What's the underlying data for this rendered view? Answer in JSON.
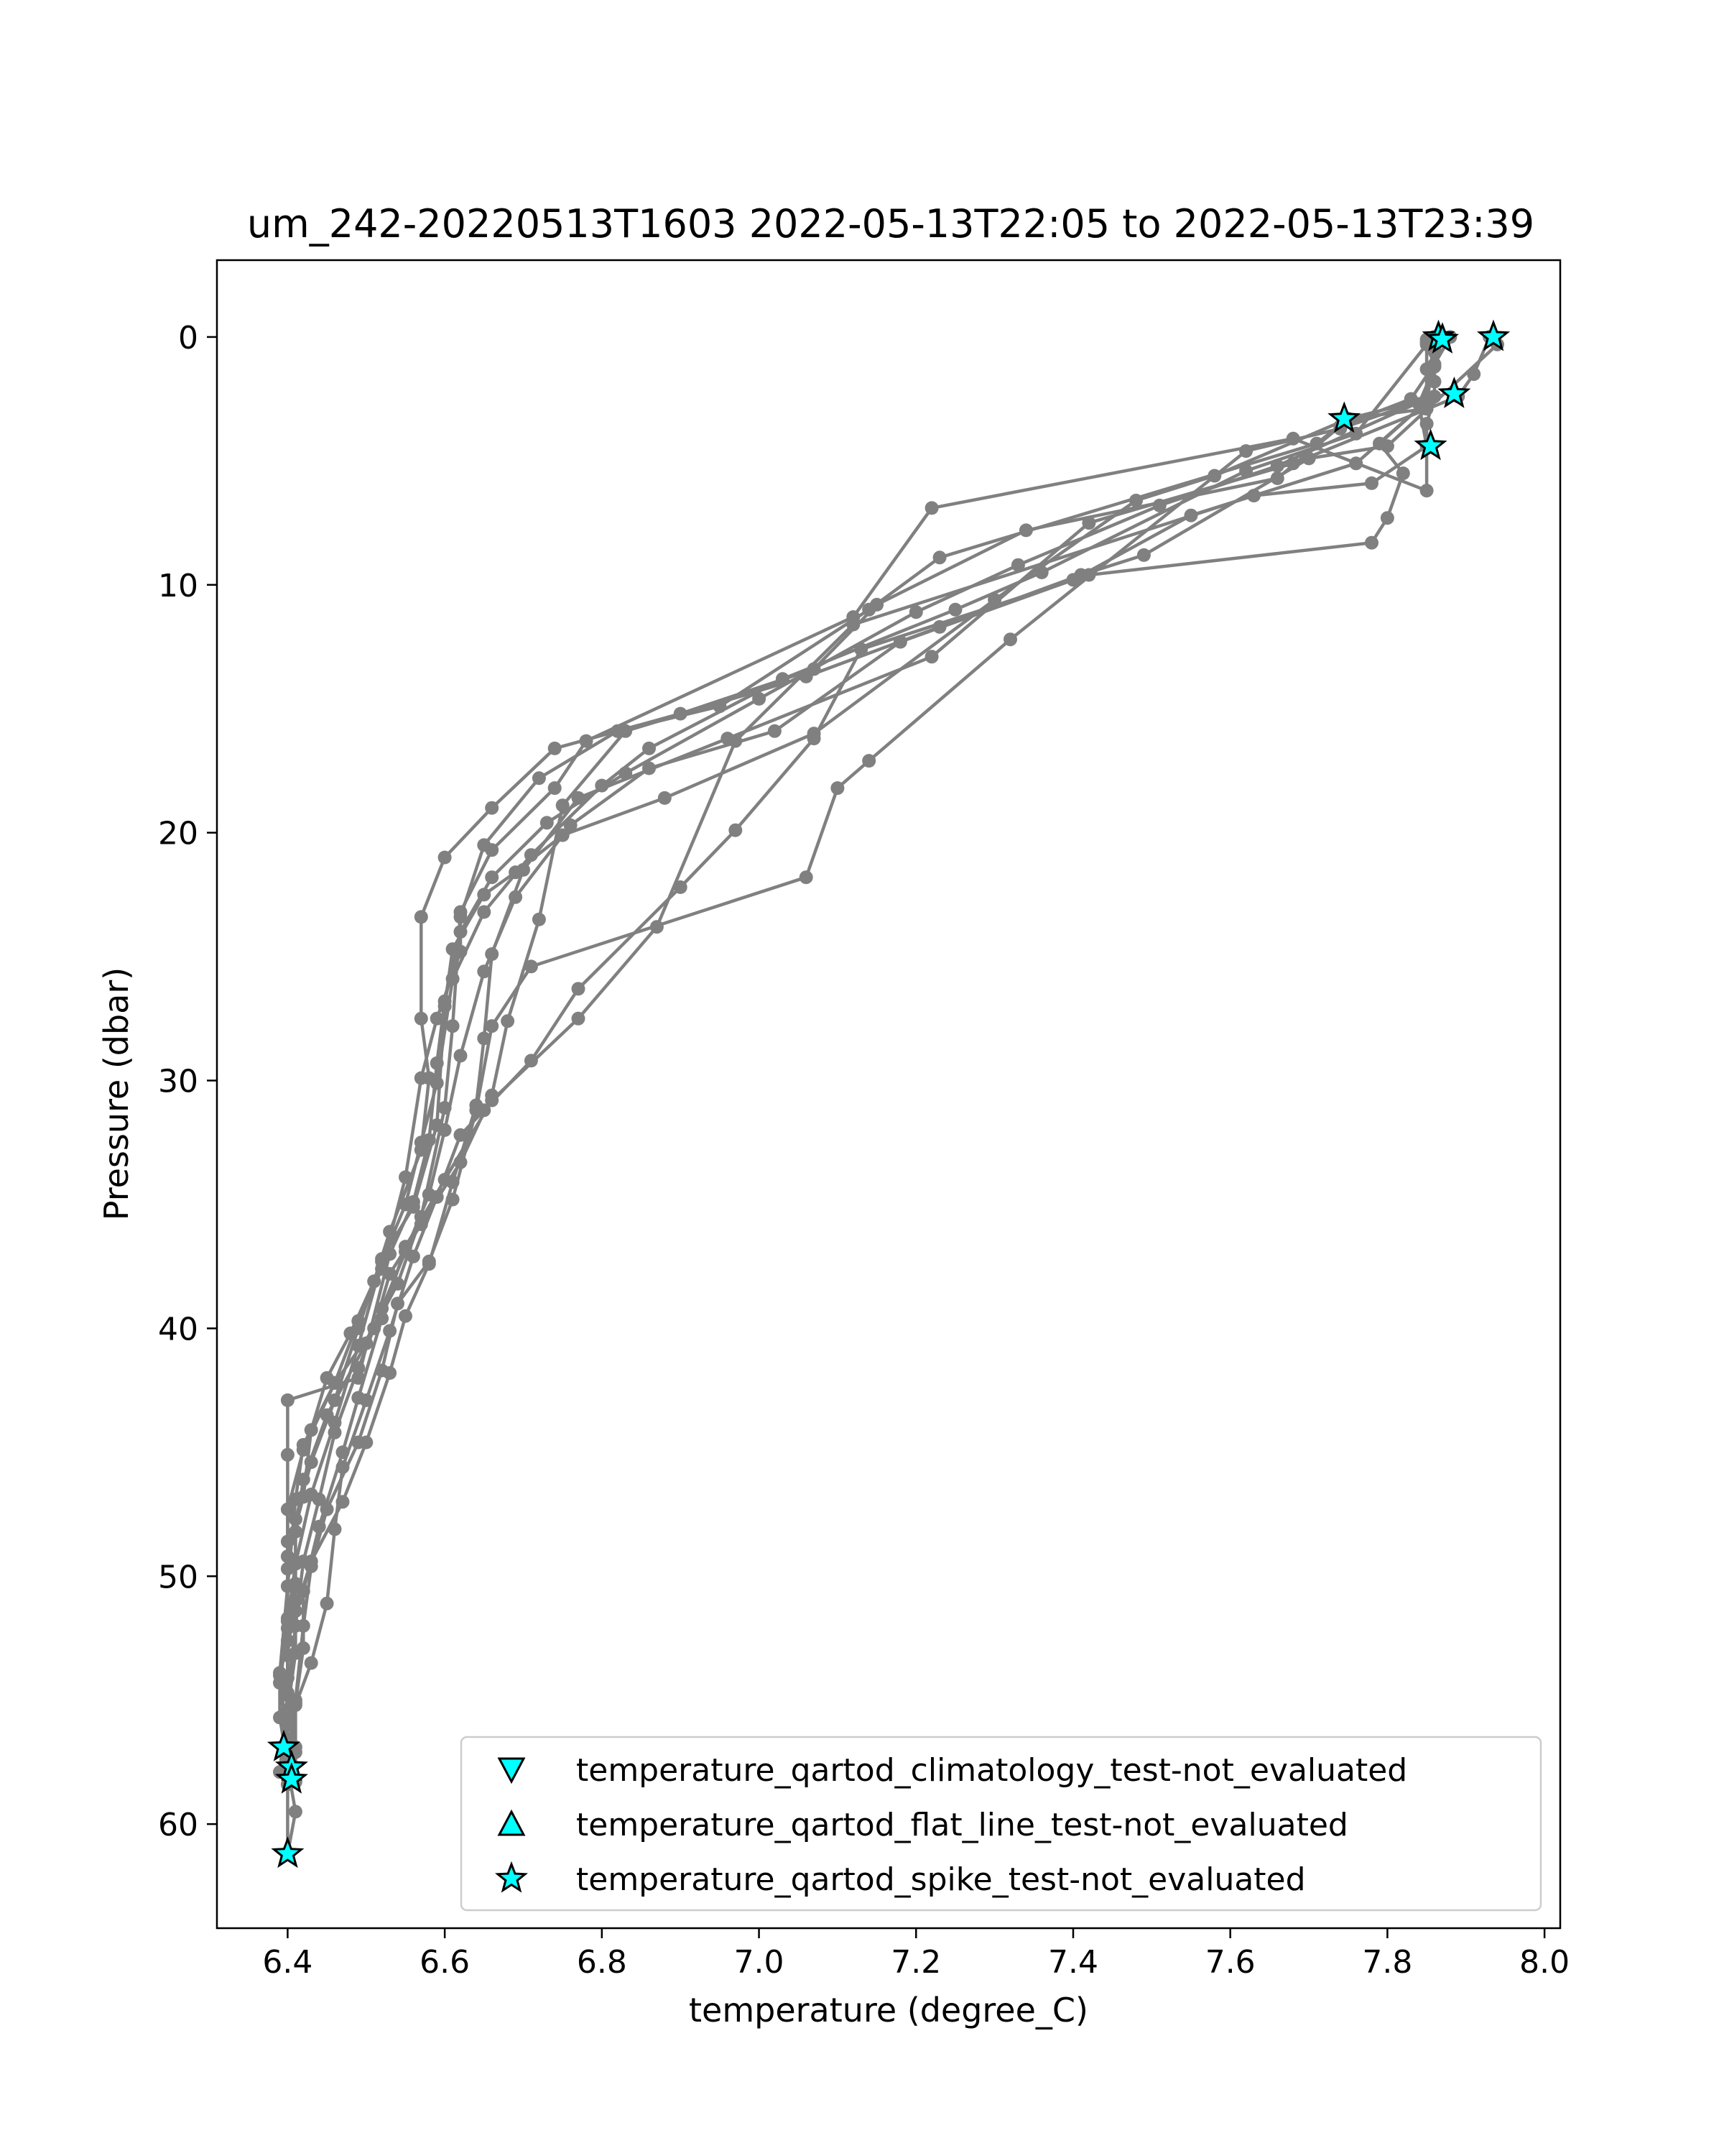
{
  "chart_data": {
    "type": "line",
    "title": "um_242-20220513T1603 2022-05-13T22:05 to 2022-05-13T23:39",
    "xlabel": "temperature (degree_C)",
    "ylabel": "Pressure (dbar)",
    "xlim": [
      6.31,
      8.02
    ],
    "ylim": [
      64.2,
      -3.1
    ],
    "y_inverted": true,
    "xticks": [
      "6.4",
      "6.6",
      "6.8",
      "7.0",
      "7.2",
      "7.4",
      "7.6",
      "7.8",
      "8.0"
    ],
    "xtick_values": [
      6.4,
      6.6,
      6.8,
      7.0,
      7.2,
      7.4,
      7.6,
      7.8,
      8.0
    ],
    "yticks": [
      "0",
      "10",
      "20",
      "30",
      "40",
      "50",
      "60"
    ],
    "ytick_values": [
      0,
      10,
      20,
      30,
      40,
      50,
      60
    ],
    "grid": false,
    "legend_position": "lower-right",
    "colors": {
      "profile_line": "#808080",
      "flag_marker_fill": "#00ffff",
      "flag_marker_edge": "#000000",
      "axes": "#000000"
    },
    "series": [
      {
        "points": [
          [
            7.86,
            0.0
          ],
          [
            7.86,
            0.6
          ],
          [
            7.86,
            1.8
          ],
          [
            7.86,
            2.4
          ],
          [
            7.85,
            3.5
          ],
          [
            7.85,
            4.4
          ],
          [
            7.85,
            6.2
          ],
          [
            7.68,
            4.1
          ],
          [
            7.22,
            6.9
          ],
          [
            7.12,
            11.3
          ],
          [
            6.78,
            16.3
          ],
          [
            6.74,
            18.2
          ],
          [
            6.66,
            20.7
          ],
          [
            6.62,
            23.2
          ],
          [
            6.61,
            27.8
          ],
          [
            6.6,
            31.1
          ],
          [
            6.57,
            35.5
          ],
          [
            6.54,
            38.2
          ],
          [
            6.5,
            40.6
          ],
          [
            6.45,
            43.5
          ],
          [
            6.42,
            46.1
          ],
          [
            6.41,
            48.2
          ],
          [
            6.41,
            51.0
          ],
          [
            6.4,
            52.6
          ],
          [
            6.4,
            54.8
          ],
          [
            6.41,
            56.9
          ],
          [
            6.41,
            58.2
          ]
        ]
      },
      {
        "points": [
          [
            7.87,
            0.1
          ],
          [
            7.85,
            1.3
          ],
          [
            7.85,
            2.5
          ],
          [
            7.75,
            3.3
          ],
          [
            7.71,
            4.3
          ],
          [
            7.23,
            8.9
          ],
          [
            7.14,
            11.0
          ],
          [
            6.95,
            14.9
          ],
          [
            6.82,
            15.9
          ],
          [
            6.72,
            17.8
          ],
          [
            6.65,
            20.5
          ],
          [
            6.62,
            23.4
          ],
          [
            6.62,
            24.8
          ],
          [
            6.59,
            27.5
          ],
          [
            6.57,
            29.9
          ],
          [
            6.55,
            33.9
          ],
          [
            6.52,
            37.6
          ],
          [
            6.49,
            39.7
          ],
          [
            6.46,
            42.2
          ],
          [
            6.42,
            44.7
          ],
          [
            6.41,
            46.9
          ],
          [
            6.4,
            50.4
          ],
          [
            6.39,
            53.9
          ],
          [
            6.39,
            55.7
          ],
          [
            6.4,
            57.6
          ]
        ]
      },
      {
        "points": [
          [
            7.88,
            0.0
          ],
          [
            7.86,
            1.1
          ],
          [
            7.83,
            2.5
          ],
          [
            7.74,
            3.6
          ],
          [
            7.66,
            5.7
          ],
          [
            7.34,
            7.8
          ],
          [
            7.15,
            10.8
          ],
          [
            7.07,
            13.4
          ],
          [
            6.9,
            15.2
          ],
          [
            6.74,
            16.6
          ],
          [
            6.66,
            19.0
          ],
          [
            6.6,
            21.0
          ],
          [
            6.57,
            23.4
          ],
          [
            6.57,
            27.5
          ],
          [
            6.58,
            29.9
          ],
          [
            6.57,
            32.8
          ],
          [
            6.53,
            36.1
          ],
          [
            6.51,
            38.1
          ],
          [
            6.48,
            40.2
          ],
          [
            6.45,
            42.0
          ],
          [
            6.43,
            44.1
          ],
          [
            6.42,
            46.8
          ],
          [
            6.4,
            49.2
          ],
          [
            6.4,
            51.8
          ],
          [
            6.39,
            54.0
          ],
          [
            6.4,
            56.8
          ]
        ]
      },
      {
        "points": [
          [
            7.93,
            0.0
          ],
          [
            7.91,
            1.5
          ],
          [
            7.89,
            2.4
          ],
          [
            7.68,
            5.1
          ],
          [
            7.42,
            7.5
          ],
          [
            7.22,
            12.9
          ],
          [
            6.96,
            16.2
          ],
          [
            6.77,
            18.6
          ],
          [
            6.7,
            21.5
          ],
          [
            6.66,
            24.9
          ],
          [
            6.65,
            28.3
          ],
          [
            6.64,
            31.0
          ],
          [
            6.61,
            34.1
          ],
          [
            6.58,
            37.4
          ],
          [
            6.55,
            39.5
          ],
          [
            6.53,
            41.8
          ],
          [
            6.5,
            44.6
          ],
          [
            6.47,
            47.0
          ],
          [
            6.43,
            49.4
          ],
          [
            6.41,
            51.4
          ],
          [
            6.41,
            53.1
          ],
          [
            6.4,
            55.4
          ],
          [
            6.4,
            56.9
          ],
          [
            6.4,
            58.0
          ]
        ]
      },
      {
        "points": [
          [
            7.94,
            0.3
          ],
          [
            7.8,
            4.4
          ],
          [
            7.7,
            4.9
          ],
          [
            7.49,
            8.8
          ],
          [
            7.41,
            9.6
          ],
          [
            7.23,
            11.7
          ],
          [
            7.06,
            13.7
          ],
          [
            6.83,
            15.9
          ],
          [
            6.75,
            18.9
          ],
          [
            6.72,
            23.5
          ],
          [
            6.68,
            27.6
          ],
          [
            6.66,
            30.6
          ],
          [
            6.62,
            33.3
          ],
          [
            6.57,
            35.8
          ],
          [
            6.53,
            37.8
          ],
          [
            6.51,
            40.0
          ],
          [
            6.46,
            42.2
          ],
          [
            6.42,
            44.9
          ],
          [
            6.4,
            47.3
          ],
          [
            6.4,
            49.7
          ],
          [
            6.4,
            52.1
          ],
          [
            6.39,
            54.3
          ],
          [
            6.4,
            56.6
          ],
          [
            6.4,
            58.4
          ]
        ]
      },
      {
        "points": [
          [
            7.86,
            0.5
          ],
          [
            7.85,
            2.6
          ],
          [
            7.79,
            4.3
          ],
          [
            7.82,
            5.5
          ],
          [
            7.8,
            7.3
          ],
          [
            7.78,
            8.3
          ],
          [
            7.42,
            9.6
          ],
          [
            7.13,
            12.6
          ],
          [
            7.07,
            16.2
          ],
          [
            6.97,
            19.9
          ],
          [
            6.9,
            22.2
          ],
          [
            6.77,
            26.3
          ],
          [
            6.71,
            29.2
          ],
          [
            6.65,
            31.2
          ],
          [
            6.62,
            32.2
          ],
          [
            6.59,
            34.7
          ],
          [
            6.56,
            37.1
          ],
          [
            6.53,
            40.1
          ],
          [
            6.5,
            42.9
          ],
          [
            6.47,
            45.6
          ],
          [
            6.46,
            48.1
          ],
          [
            6.45,
            51.1
          ],
          [
            6.43,
            53.5
          ],
          [
            6.41,
            55.2
          ],
          [
            6.4,
            57.2
          ],
          [
            6.4,
            61.2
          ]
        ]
      },
      {
        "points": [
          [
            7.85,
            0.2
          ],
          [
            7.86,
            1.2
          ],
          [
            7.84,
            2.7
          ],
          [
            7.85,
            4.4
          ],
          [
            7.78,
            5.9
          ],
          [
            7.63,
            6.4
          ],
          [
            7.12,
            11.6
          ],
          [
            6.97,
            16.3
          ],
          [
            6.87,
            23.8
          ],
          [
            6.77,
            27.5
          ],
          [
            6.66,
            30.8
          ],
          [
            6.6,
            34.0
          ],
          [
            6.55,
            36.7
          ],
          [
            6.52,
            39.6
          ],
          [
            6.49,
            42.8
          ],
          [
            6.47,
            45.0
          ],
          [
            6.44,
            48.0
          ],
          [
            6.42,
            50.6
          ],
          [
            6.42,
            52.9
          ],
          [
            6.41,
            55.1
          ],
          [
            6.41,
            57.1
          ],
          [
            6.41,
            58.3
          ]
        ]
      },
      {
        "points": [
          [
            7.86,
            0.0
          ],
          [
            7.85,
            2.5
          ],
          [
            7.74,
            3.7
          ],
          [
            7.62,
            4.6
          ],
          [
            7.32,
            12.2
          ],
          [
            7.14,
            17.1
          ],
          [
            7.1,
            18.2
          ],
          [
            7.06,
            21.8
          ],
          [
            6.71,
            25.4
          ],
          [
            6.66,
            27.8
          ],
          [
            6.64,
            31.2
          ],
          [
            6.61,
            34.8
          ],
          [
            6.58,
            37.3
          ],
          [
            6.54,
            39.0
          ],
          [
            6.52,
            41.7
          ],
          [
            6.49,
            44.6
          ],
          [
            6.45,
            47.3
          ],
          [
            6.43,
            49.6
          ],
          [
            6.42,
            52.0
          ],
          [
            6.41,
            55.0
          ],
          [
            6.4,
            57.7
          ],
          [
            6.41,
            59.5
          ],
          [
            6.4,
            61.2
          ]
        ]
      },
      {
        "points": [
          [
            7.86,
            0.1
          ],
          [
            7.85,
            2.9
          ],
          [
            7.75,
            3.3
          ],
          [
            7.58,
            5.6
          ],
          [
            7.48,
            6.6
          ],
          [
            7.3,
            10.6
          ],
          [
            7.07,
            16.0
          ],
          [
            6.88,
            18.6
          ],
          [
            6.75,
            20.1
          ],
          [
            6.69,
            21.6
          ],
          [
            6.65,
            22.5
          ],
          [
            6.61,
            24.7
          ],
          [
            6.6,
            27.0
          ],
          [
            6.59,
            31.8
          ],
          [
            6.56,
            35.1
          ],
          [
            6.52,
            37.2
          ],
          [
            6.49,
            40.0
          ],
          [
            6.46,
            42.9
          ],
          [
            6.43,
            45.4
          ],
          [
            6.41,
            47.7
          ],
          [
            6.41,
            50.3
          ],
          [
            6.4,
            53.2
          ],
          [
            6.4,
            56.0
          ],
          [
            6.4,
            58.0
          ]
        ]
      },
      {
        "points": [
          [
            7.85,
            0.3
          ],
          [
            7.76,
            3.9
          ],
          [
            7.62,
            5.4
          ],
          [
            7.36,
            9.5
          ],
          [
            7.25,
            11.0
          ],
          [
            7.03,
            13.8
          ],
          [
            6.86,
            16.6
          ],
          [
            6.8,
            18.1
          ],
          [
            6.71,
            20.9
          ],
          [
            6.65,
            23.2
          ],
          [
            6.61,
            25.9
          ],
          [
            6.59,
            30.1
          ],
          [
            6.57,
            32.5
          ],
          [
            6.55,
            35.0
          ],
          [
            6.52,
            37.3
          ],
          [
            6.49,
            40.7
          ],
          [
            6.46,
            43.8
          ],
          [
            6.43,
            46.7
          ],
          [
            6.41,
            49.5
          ],
          [
            6.4,
            51.8
          ],
          [
            6.4,
            54.1
          ],
          [
            6.4,
            57.0
          ]
        ]
      },
      {
        "points": [
          [
            7.86,
            0.1
          ],
          [
            7.85,
            2.5
          ],
          [
            7.66,
            5.2
          ],
          [
            7.51,
            6.8
          ],
          [
            7.33,
            9.2
          ],
          [
            7.2,
            11.1
          ],
          [
            7.0,
            14.6
          ],
          [
            6.83,
            17.6
          ],
          [
            6.73,
            19.6
          ],
          [
            6.66,
            21.8
          ],
          [
            6.62,
            24.0
          ],
          [
            6.6,
            26.8
          ],
          [
            6.59,
            29.3
          ],
          [
            6.58,
            32.4
          ],
          [
            6.56,
            34.9
          ],
          [
            6.53,
            37.0
          ],
          [
            6.49,
            42.0
          ],
          [
            6.4,
            42.9
          ],
          [
            6.4,
            45.1
          ],
          [
            6.4,
            48.6
          ],
          [
            6.4,
            51.7
          ],
          [
            6.4,
            55.8
          ],
          [
            6.4,
            58.1
          ]
        ]
      },
      {
        "points": [
          [
            7.85,
            0.1
          ],
          [
            7.85,
            2.6
          ],
          [
            7.76,
            5.1
          ],
          [
            7.55,
            7.2
          ],
          [
            7.4,
            9.8
          ],
          [
            7.18,
            12.3
          ],
          [
            7.02,
            15.9
          ],
          [
            6.86,
            17.4
          ],
          [
            6.76,
            19.7
          ],
          [
            6.69,
            22.6
          ],
          [
            6.65,
            25.6
          ],
          [
            6.62,
            29.0
          ],
          [
            6.6,
            32.0
          ],
          [
            6.58,
            34.6
          ],
          [
            6.55,
            36.9
          ],
          [
            6.52,
            39.2
          ],
          [
            6.49,
            41.6
          ],
          [
            6.46,
            44.2
          ],
          [
            6.44,
            46.9
          ],
          [
            6.42,
            49.4
          ],
          [
            6.41,
            52.0
          ],
          [
            6.4,
            54.7
          ],
          [
            6.39,
            57.9
          ]
        ]
      }
    ],
    "flag_markers": [
      {
        "flag": "spike",
        "points": [
          [
            7.865,
            0.0
          ],
          [
            7.87,
            0.1
          ],
          [
            7.935,
            0.0
          ],
          [
            7.885,
            2.3
          ],
          [
            7.745,
            3.3
          ],
          [
            7.855,
            4.4
          ],
          [
            6.395,
            56.9
          ],
          [
            6.405,
            57.7
          ],
          [
            6.405,
            58.2
          ],
          [
            6.4,
            61.2
          ]
        ]
      }
    ],
    "legend": [
      {
        "label": "temperature_qartod_climatology_test-not_evaluated",
        "marker": "triangle-down-icon"
      },
      {
        "label": "temperature_qartod_flat_line_test-not_evaluated",
        "marker": "triangle-up-icon"
      },
      {
        "label": "temperature_qartod_spike_test-not_evaluated",
        "marker": "star-icon"
      }
    ]
  }
}
